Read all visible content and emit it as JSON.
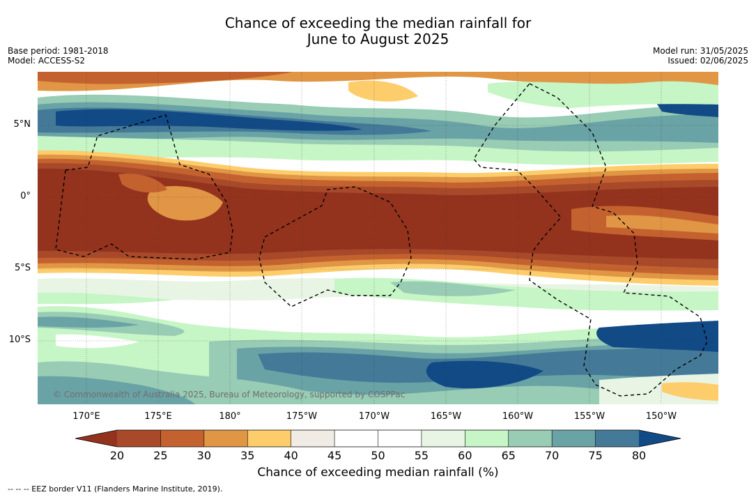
{
  "title_line1": "Chance of exceeding the median rainfall for",
  "title_line2": "June to August 2025",
  "base_period": "Base period: 1981-2018",
  "model": "Model: ACCESS-S2",
  "model_run": "Model run: 31/05/2025",
  "issued": "Issued: 02/06/2025",
  "lat_labels": [
    "5°N",
    "0°",
    "5°S",
    "10°S"
  ],
  "lon_labels": [
    "170°E",
    "175°E",
    "180°",
    "175°W",
    "170°W",
    "165°W",
    "160°W",
    "155°W",
    "150°W"
  ],
  "copyright": "© Commonwealth of Australia 2025, Bureau of Meteorology, supported by COSPPac",
  "colorbar": {
    "ticks": [
      "20",
      "25",
      "30",
      "35",
      "40",
      "45",
      "50",
      "55",
      "60",
      "65",
      "70",
      "75",
      "80"
    ],
    "colors": [
      "#a84a2a",
      "#c4622f",
      "#e09645",
      "#fdcd6c",
      "#f0ebe4",
      "#ffffff",
      "#ffffff",
      "#e8f5e4",
      "#c6f5c6",
      "#98ccb4",
      "#6aa3a6",
      "#447a98"
    ],
    "low_color": "#93331e",
    "high_color": "#124a86",
    "label": "Chance of exceeding median rainfall (%)"
  },
  "footnote": "--  --  -- EEZ border V11 (Flanders Marine Institute, 2019)."
}
